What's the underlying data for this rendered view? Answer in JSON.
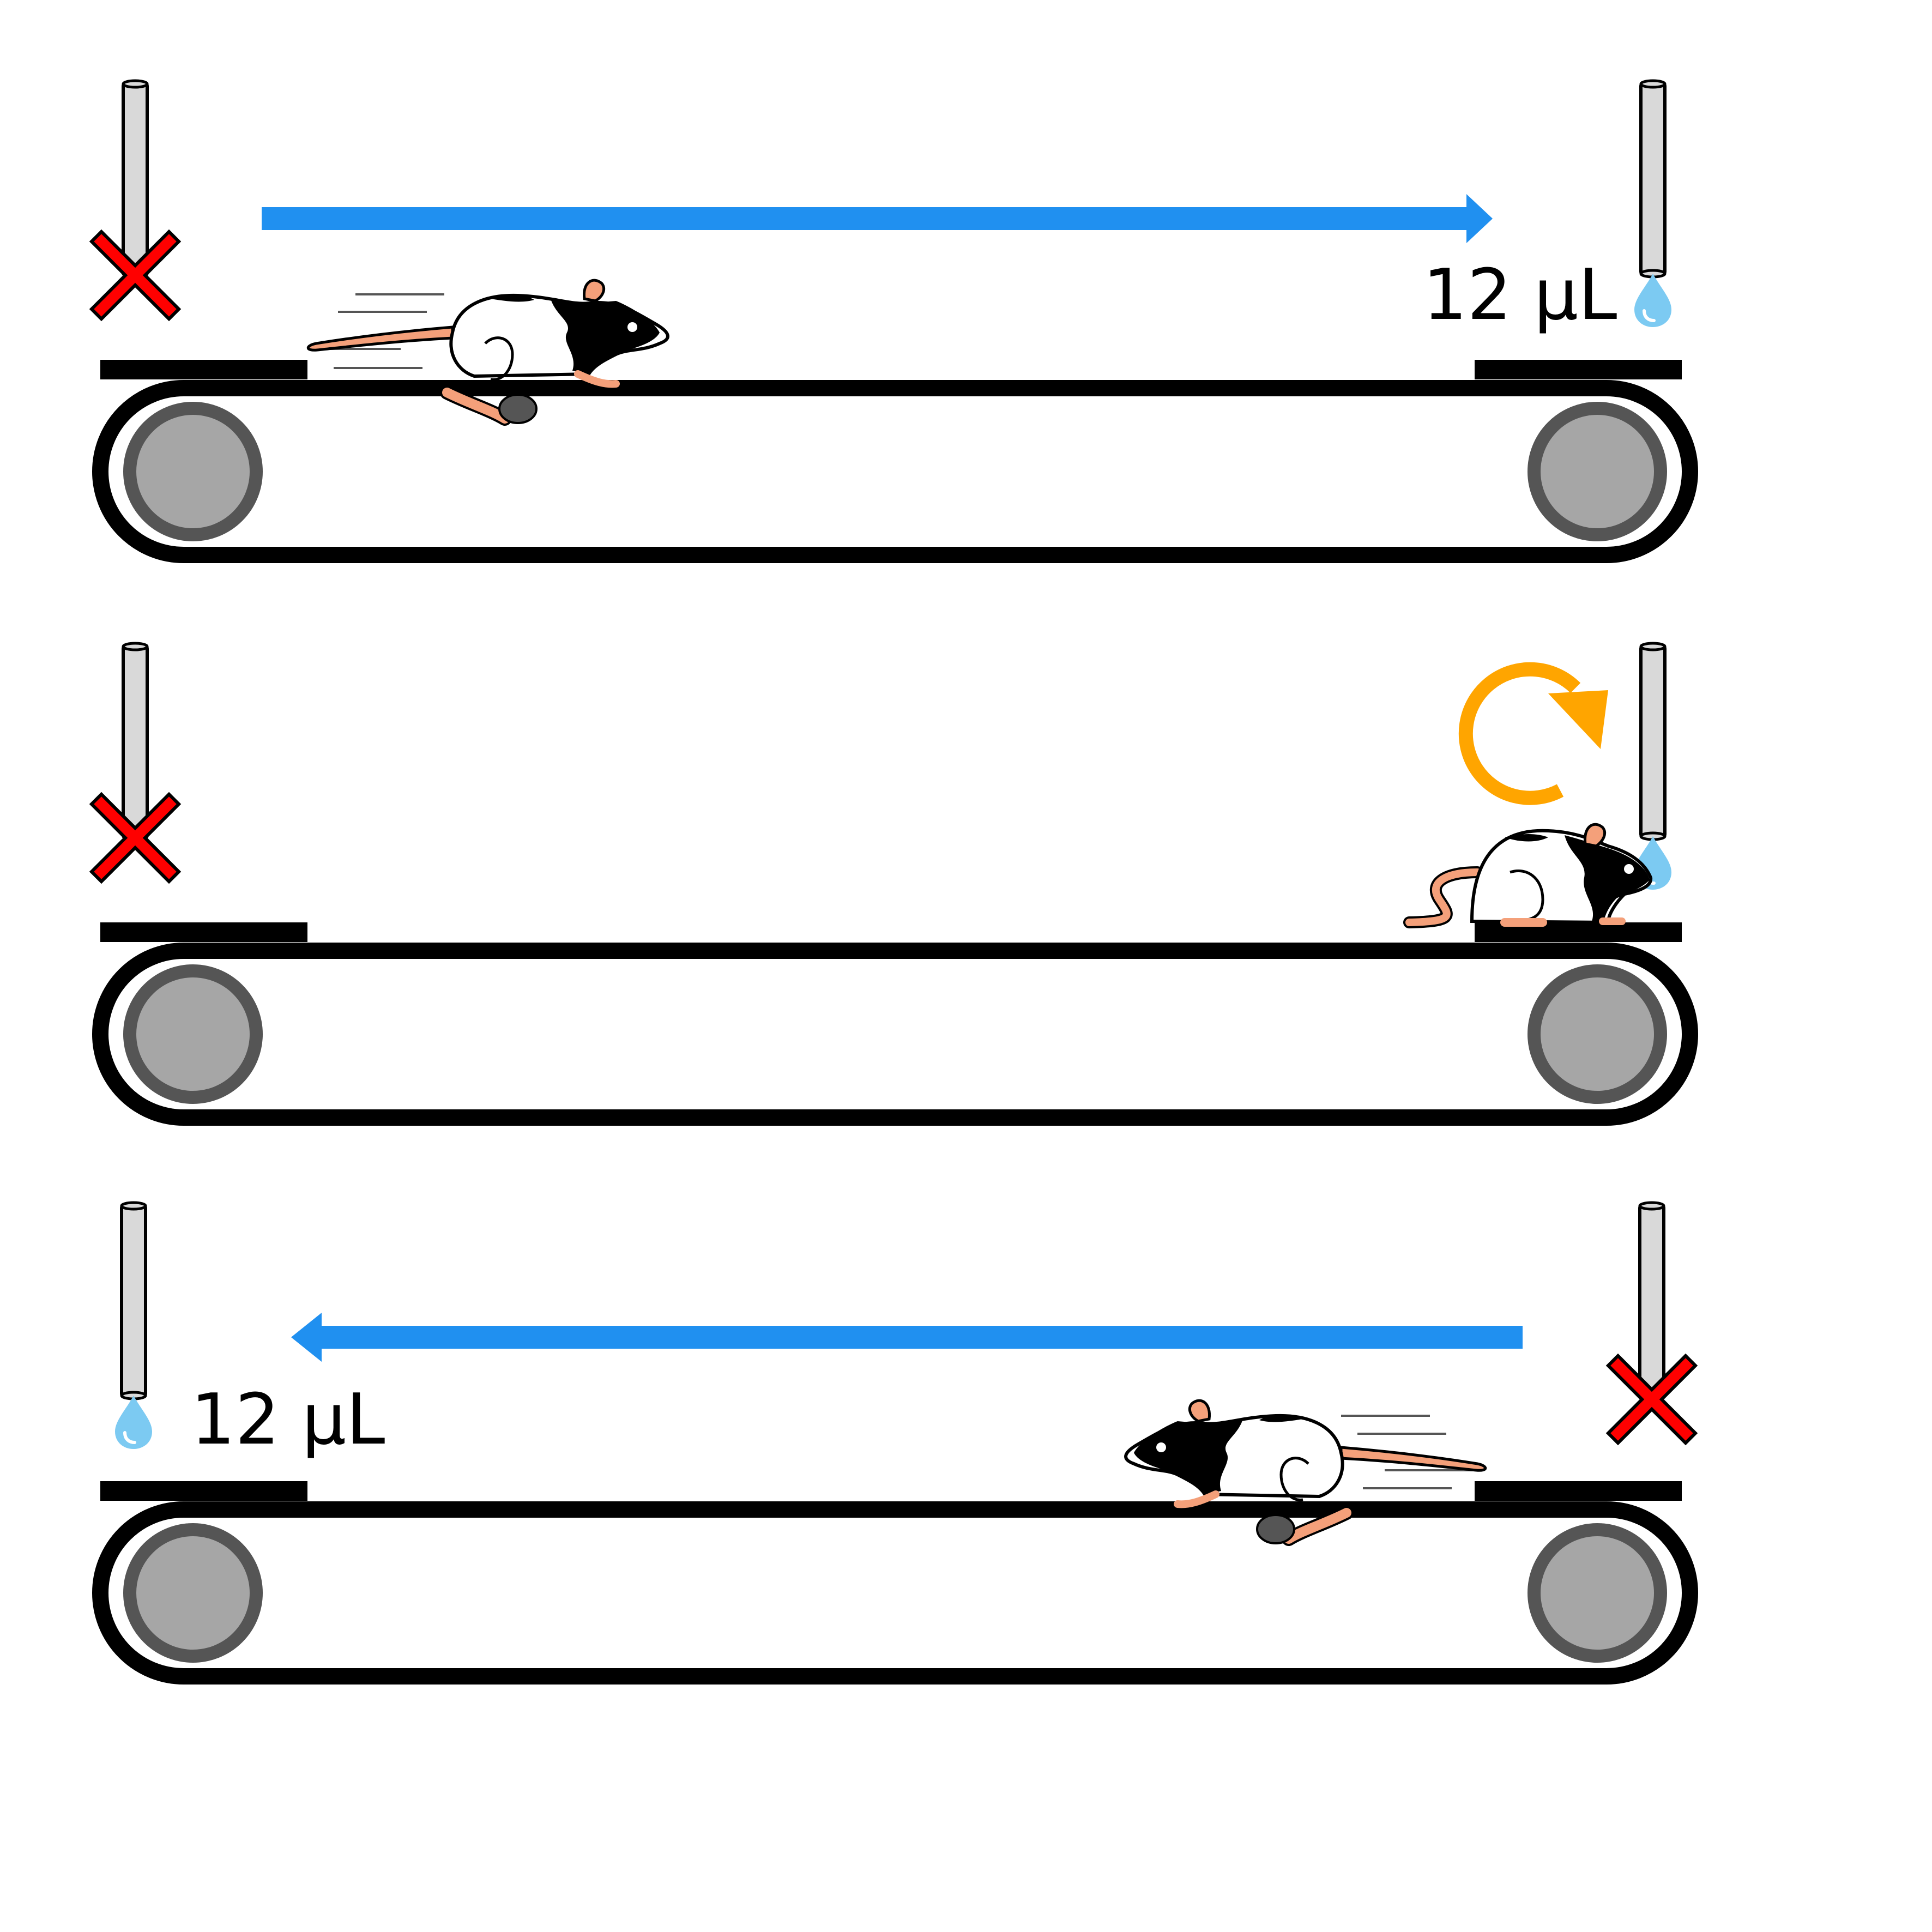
{
  "panels": [
    {
      "id": "run-right",
      "left_port": "disabled",
      "right_port": "reward",
      "volume_label": "12 μL",
      "volume_side": "right",
      "arrow_direction": "right",
      "rat": "running-right"
    },
    {
      "id": "turn-around",
      "left_port": "disabled",
      "right_port": "reward",
      "volume_label": "",
      "arrow_direction": "none",
      "rotate_icon": true,
      "rat": "drinking-right"
    },
    {
      "id": "run-left",
      "left_port": "reward",
      "right_port": "disabled",
      "volume_label": "12 μL",
      "volume_side": "left",
      "arrow_direction": "left",
      "rat": "running-left"
    }
  ],
  "colors": {
    "arrow": "#2090f0",
    "rotate_icon": "#ffa500",
    "disabled_mark": "#ff0000",
    "water_drop": "#7ccaf2",
    "roller": "#a6a6a6",
    "roller_rim": "#555555",
    "belt": "#000000",
    "tail": "#f4a07a"
  },
  "icons": [
    "spout-icon",
    "x-mark-icon",
    "water-drop-icon",
    "rotate-arrow-icon",
    "rat-icon",
    "conveyor-roller-icon"
  ]
}
